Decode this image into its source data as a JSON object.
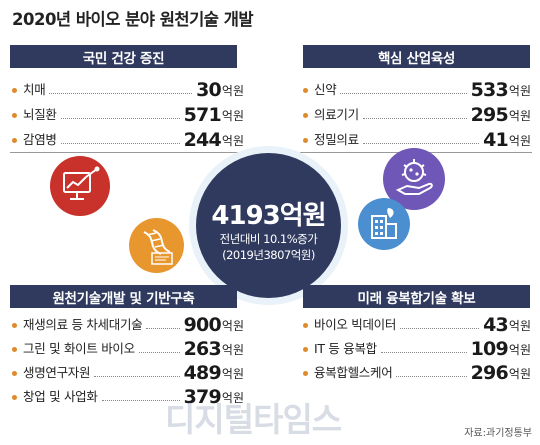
{
  "title": "2020년 바이오 분야 원천기술 개발",
  "center": {
    "total": "4193억원",
    "line1": "전년대비 10.1%증가",
    "line2": "(2019년3807억원)"
  },
  "panels": {
    "health": {
      "heading": "국민 건강 증진",
      "items": [
        {
          "label": "치매",
          "value": "30",
          "unit": "억원"
        },
        {
          "label": "뇌질환",
          "value": "571",
          "unit": "억원"
        },
        {
          "label": "감염병",
          "value": "244",
          "unit": "억원"
        }
      ]
    },
    "industry": {
      "heading": "핵심 산업육성",
      "items": [
        {
          "label": "신약",
          "value": "533",
          "unit": "억원"
        },
        {
          "label": "의료기기",
          "value": "295",
          "unit": "억원"
        },
        {
          "label": "정밀의료",
          "value": "41",
          "unit": "억원"
        }
      ]
    },
    "infra": {
      "heading": "원천기술개발 및 기반구축",
      "items": [
        {
          "label": "재생의료 등 차세대기술",
          "value": "900",
          "unit": "억원"
        },
        {
          "label": "그린 및 화이트 바이오",
          "value": "263",
          "unit": "억원"
        },
        {
          "label": "생명연구자원",
          "value": "489",
          "unit": "억원"
        },
        {
          "label": "창업 및 사업화",
          "value": "379",
          "unit": "억원"
        }
      ]
    },
    "future": {
      "heading": "미래 융복합기술 확보",
      "items": [
        {
          "label": "바이오 빅데이터",
          "value": "43",
          "unit": "억원"
        },
        {
          "label": "IT 등 융복합",
          "value": "109",
          "unit": "억원"
        },
        {
          "label": "융복합헬스케어",
          "value": "296",
          "unit": "억원"
        }
      ]
    }
  },
  "icons": [
    "chart-monitor-icon",
    "dna-icon",
    "virus-hand-icon",
    "hospital-icon"
  ],
  "colors": {
    "navy": "#2f3a5e",
    "orange": "#e0892b",
    "red": "#c8322b",
    "blue": "#4b8fd1",
    "purple": "#6f57b8"
  },
  "watermark": "디지털타임스",
  "source": "자료:과기정통부"
}
